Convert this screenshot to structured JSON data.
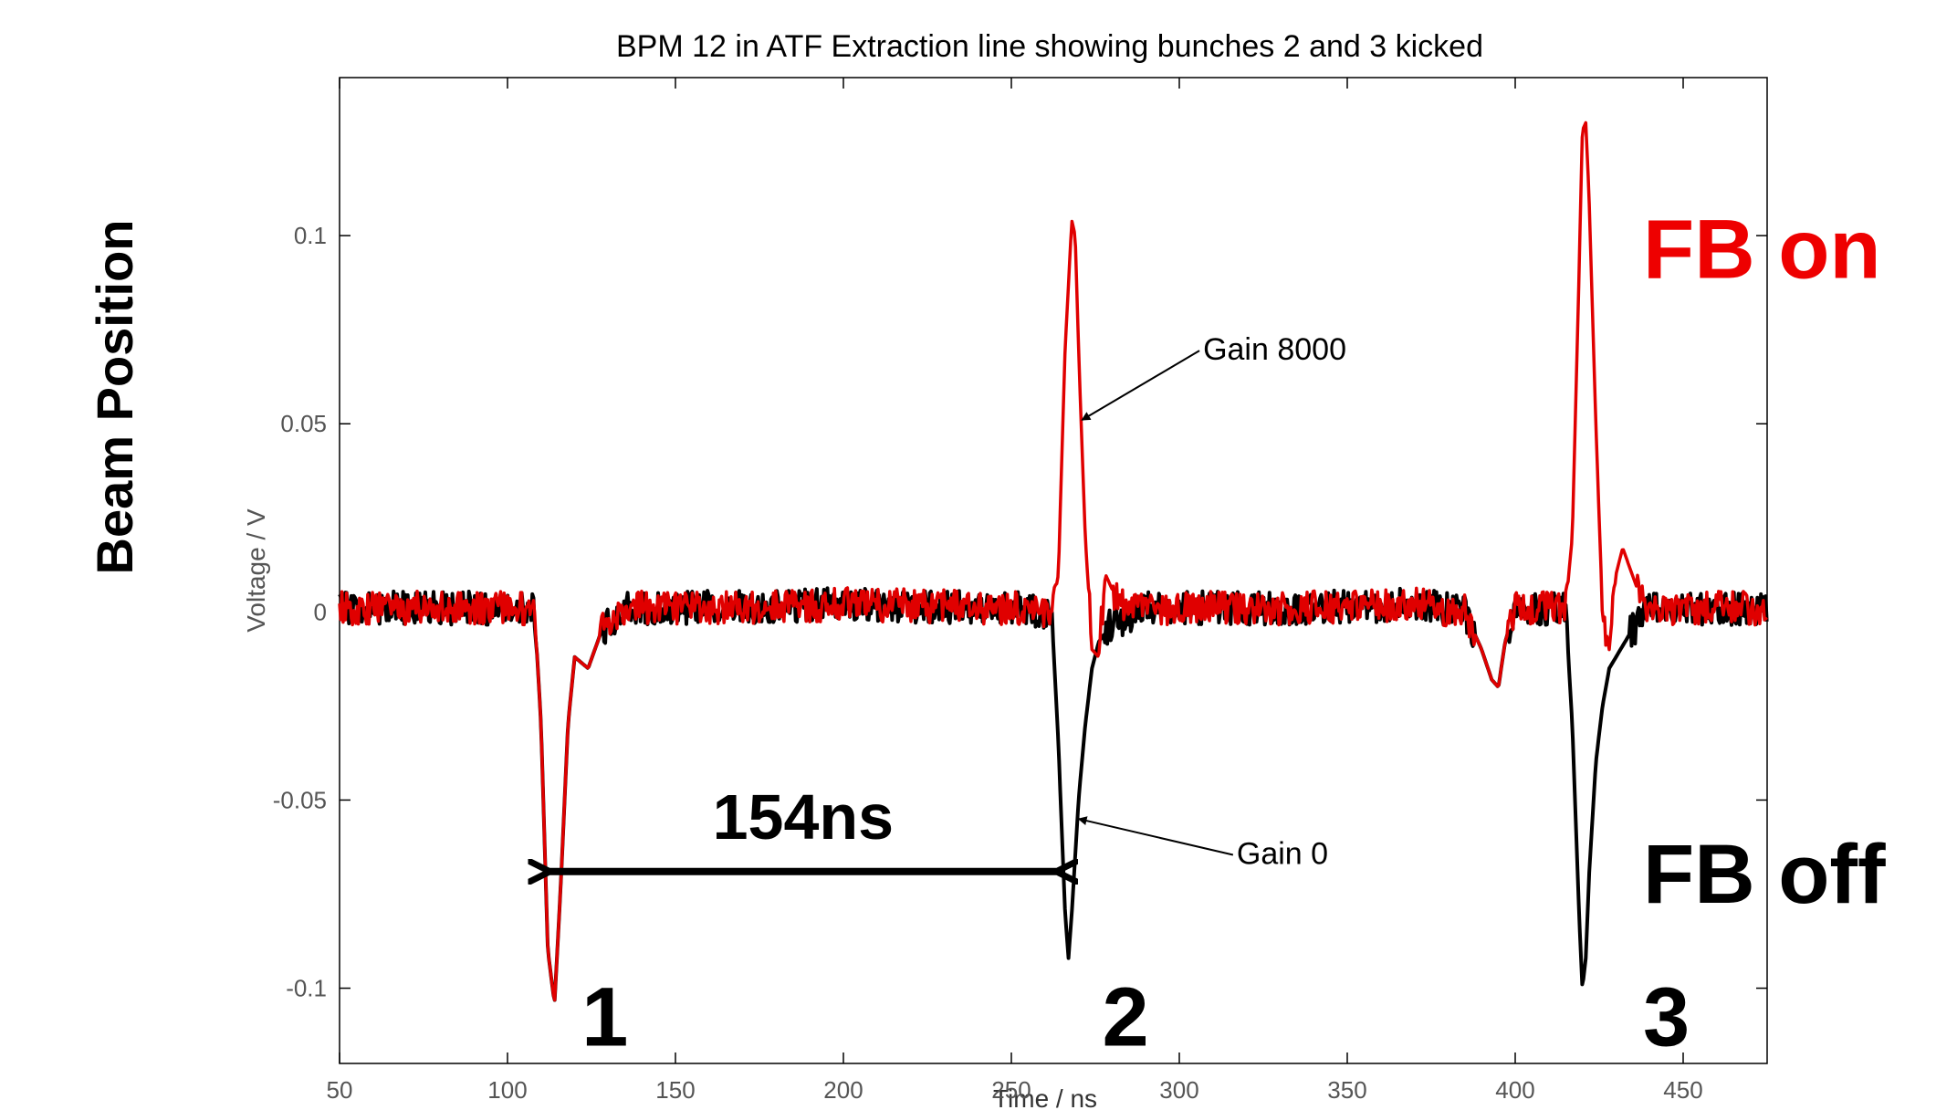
{
  "chart_data": {
    "type": "line",
    "title": "BPM 12 in ATF Extraction line showing bunches 2 and 3 kicked",
    "xlabel": "Time / ns",
    "ylabel": "Voltage / V",
    "side_label": "Beam Position",
    "xlim": [
      50,
      475
    ],
    "ylim": [
      -0.12,
      0.142
    ],
    "xticks": [
      50,
      100,
      150,
      200,
      250,
      300,
      350,
      400,
      450
    ],
    "yticks": [
      -0.1,
      -0.05,
      0,
      0.05,
      0.1
    ],
    "xtick_labels": [
      "50",
      "100",
      "150",
      "200",
      "250",
      "300",
      "350",
      "400",
      "450"
    ],
    "ytick_labels": [
      "-0.1",
      "-0.05",
      "0",
      "0.05",
      "0.1"
    ],
    "grid": false,
    "colors": {
      "gain0": "#000000",
      "gain8000": "#e00000",
      "fb_on": "#ee0000",
      "fb_off": "#000000"
    },
    "series": [
      {
        "name": "Gain 0",
        "color": "#000000",
        "x": [
          50,
          108,
          110,
          112,
          114,
          116,
          118,
          120,
          124,
          128,
          135,
          150,
          200,
          250,
          262,
          264,
          266,
          267,
          268,
          270,
          272,
          274,
          276,
          280,
          290,
          330,
          370,
          385,
          390,
          393,
          395,
          397,
          400,
          405,
          415,
          417,
          419,
          420,
          421,
          422,
          424,
          426,
          428,
          430,
          434,
          440,
          475
        ],
        "y": [
          0.001,
          0.001,
          -0.03,
          -0.09,
          -0.104,
          -0.07,
          -0.03,
          -0.012,
          -0.015,
          -0.005,
          0.001,
          0.001,
          0.002,
          0.001,
          0.0,
          -0.035,
          -0.08,
          -0.092,
          -0.08,
          -0.05,
          -0.03,
          -0.015,
          -0.008,
          -0.003,
          0.001,
          0.001,
          0.002,
          0.0,
          -0.01,
          -0.018,
          -0.02,
          -0.008,
          0.001,
          0.001,
          0.001,
          -0.03,
          -0.08,
          -0.1,
          -0.092,
          -0.07,
          -0.04,
          -0.025,
          -0.015,
          -0.012,
          -0.006,
          0.001,
          0.001
        ]
      },
      {
        "name": "Gain 8000",
        "color": "#e00000",
        "x": [
          50,
          108,
          110,
          112,
          114,
          116,
          118,
          120,
          124,
          128,
          135,
          150,
          200,
          250,
          262,
          264,
          266,
          268,
          269,
          270,
          272,
          274,
          276,
          278,
          282,
          290,
          330,
          370,
          385,
          390,
          393,
          395,
          397,
          400,
          405,
          415,
          417,
          419,
          420,
          421,
          422,
          424,
          426,
          428,
          430,
          432,
          434,
          438,
          445,
          475
        ],
        "y": [
          0.001,
          0.001,
          -0.03,
          -0.09,
          -0.104,
          -0.07,
          -0.03,
          -0.012,
          -0.015,
          -0.005,
          0.001,
          0.001,
          0.002,
          0.001,
          0.0,
          0.01,
          0.07,
          0.104,
          0.1,
          0.07,
          0.02,
          -0.01,
          -0.012,
          0.01,
          0.002,
          0.001,
          0.001,
          0.002,
          0.0,
          -0.01,
          -0.018,
          -0.02,
          -0.008,
          0.001,
          0.001,
          0.001,
          0.02,
          0.09,
          0.128,
          0.13,
          0.11,
          0.05,
          0.0,
          -0.01,
          0.01,
          0.017,
          0.012,
          0.002,
          0.001,
          0.001
        ]
      }
    ],
    "annotations": [
      {
        "id": "gain8000",
        "text": "Gain 8000",
        "text_x": 306,
        "text_y": 0.067,
        "arrow_x": 271,
        "arrow_y": 0.051
      },
      {
        "id": "gain0",
        "text": "Gain 0",
        "text_x": 316,
        "text_y": -0.067,
        "arrow_x": 270,
        "arrow_y": -0.055
      }
    ],
    "interval": {
      "text": "154ns",
      "x_start": 111,
      "x_end": 265,
      "y": -0.069
    },
    "bunch_labels": [
      {
        "text": "1",
        "x": 129,
        "y": -0.106
      },
      {
        "text": "2",
        "x": 284,
        "y": -0.106
      },
      {
        "text": "3",
        "x": 445,
        "y": -0.106
      }
    ],
    "state_labels": [
      {
        "text": "FB on",
        "color": "#ee0000",
        "x": 500,
        "y": 0.096
      },
      {
        "text": "FB off",
        "color": "#000000",
        "x": 500,
        "y": -0.07
      }
    ]
  }
}
